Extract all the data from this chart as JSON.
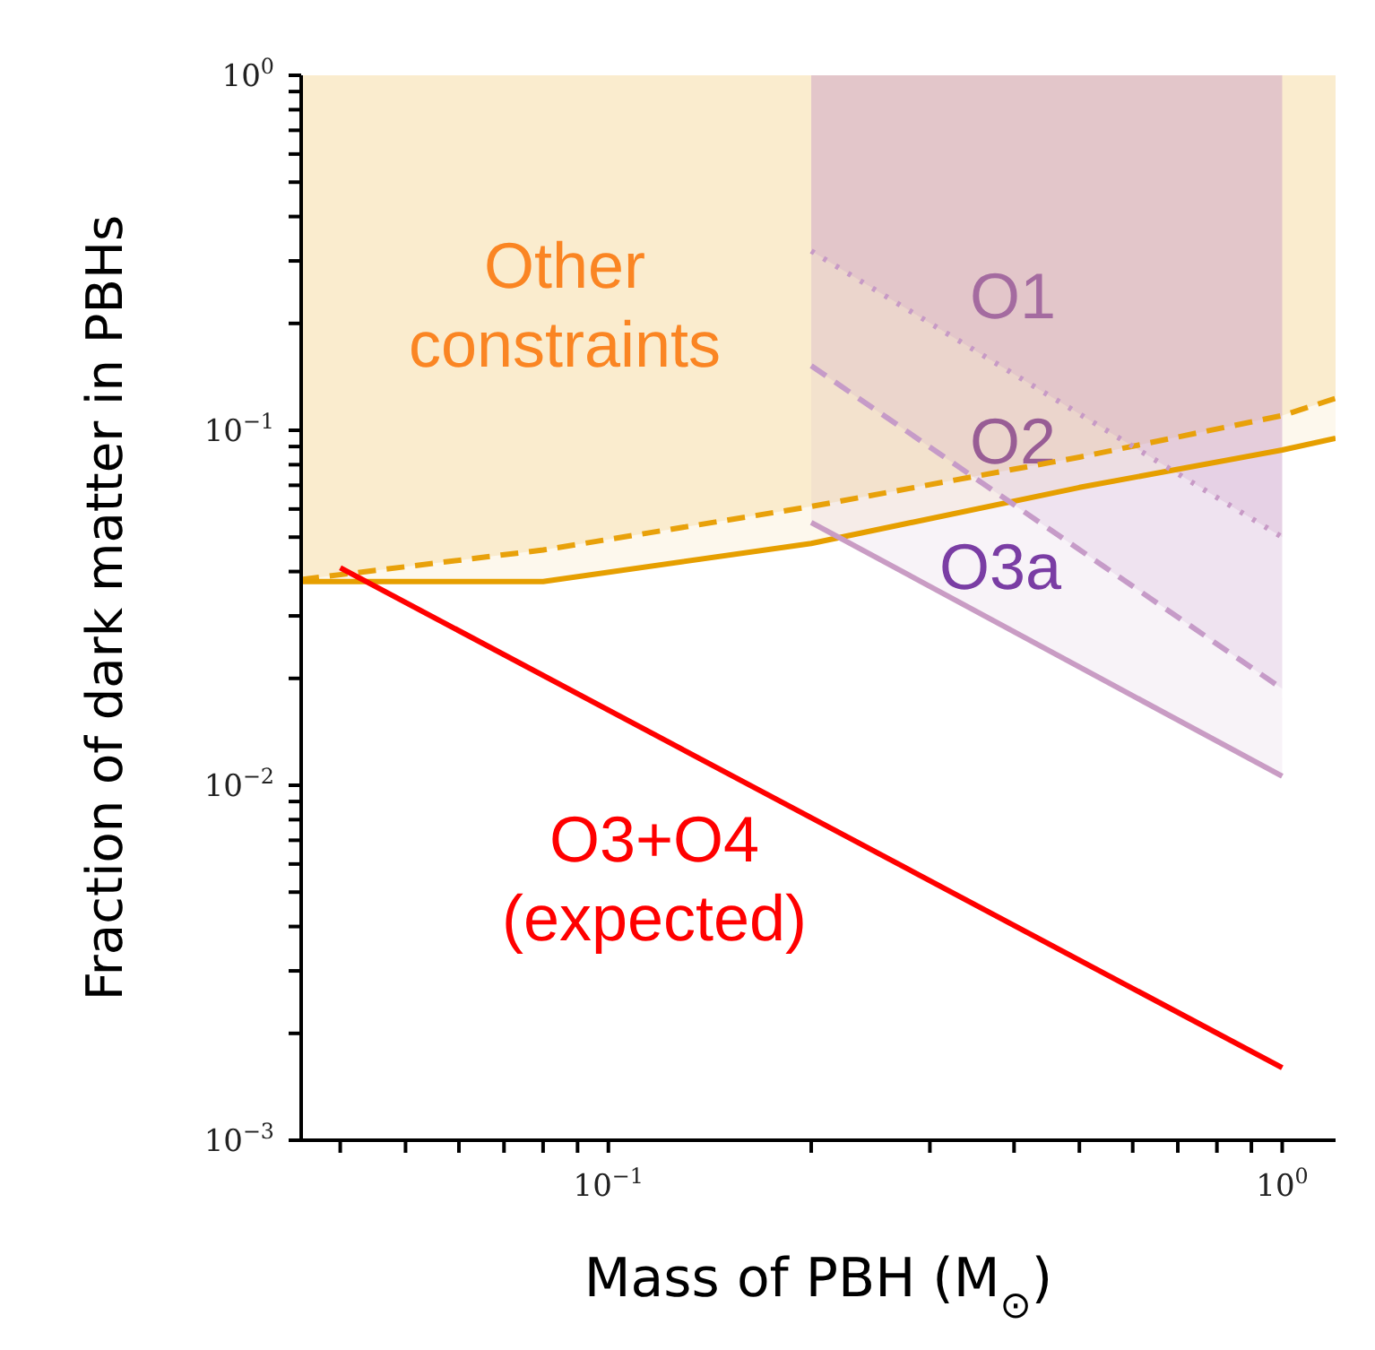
{
  "chart_data": {
    "type": "line",
    "log": "xy",
    "xlabel": "Mass of PBH (M$_{⊙}$)",
    "ylabel": "Fraction of dark matter in PBHs",
    "xlim": [
      0.035,
      1.2
    ],
    "xticks": [
      {
        "value": 0.04,
        "label": null
      },
      {
        "value": 0.05,
        "label": null
      },
      {
        "value": 0.06,
        "label": null
      },
      {
        "value": 0.07,
        "label": null
      },
      {
        "value": 0.08,
        "label": null
      },
      {
        "value": 0.09,
        "label": null
      },
      {
        "value": 0.1,
        "label": "10$^{−1}$"
      },
      {
        "value": 0.2,
        "label": null
      },
      {
        "value": 0.3,
        "label": null
      },
      {
        "value": 0.4,
        "label": null
      },
      {
        "value": 0.5,
        "label": null
      },
      {
        "value": 0.6,
        "label": null
      },
      {
        "value": 0.7,
        "label": null
      },
      {
        "value": 0.8,
        "label": null
      },
      {
        "value": 0.9,
        "label": null
      },
      {
        "value": 1,
        "label": "10$^{0}$"
      }
    ],
    "ylim": [
      0.001,
      1
    ],
    "yticks": [
      {
        "value": 0.001,
        "label": "10$^{−3}$"
      },
      {
        "value": 0.002,
        "label": null
      },
      {
        "value": 0.003,
        "label": null
      },
      {
        "value": 0.004,
        "label": null
      },
      {
        "value": 0.005,
        "label": null
      },
      {
        "value": 0.006,
        "label": null
      },
      {
        "value": 0.007,
        "label": null
      },
      {
        "value": 0.008,
        "label": null
      },
      {
        "value": 0.009,
        "label": null
      },
      {
        "value": 0.01,
        "label": "10$^{−2}$"
      },
      {
        "value": 0.02,
        "label": null
      },
      {
        "value": 0.03,
        "label": null
      },
      {
        "value": 0.04,
        "label": null
      },
      {
        "value": 0.05,
        "label": null
      },
      {
        "value": 0.06,
        "label": null
      },
      {
        "value": 0.07,
        "label": null
      },
      {
        "value": 0.08,
        "label": null
      },
      {
        "value": 0.09,
        "label": null
      },
      {
        "value": 0.1,
        "label": "10$^{−1}$"
      },
      {
        "value": 0.2,
        "label": null
      },
      {
        "value": 0.3,
        "label": null
      },
      {
        "value": 0.4,
        "label": null
      },
      {
        "value": 0.5,
        "label": null
      },
      {
        "value": 0.6,
        "label": null
      },
      {
        "value": 0.7,
        "label": null
      },
      {
        "value": 0.8,
        "label": null
      },
      {
        "value": 0.9,
        "label": null
      },
      {
        "value": 1,
        "label": "10$^{0}$"
      }
    ],
    "series": [
      {
        "color": "#e8a10a",
        "line_style": "dashed",
        "x": [
          0.035,
          0.08,
          0.2,
          0.5,
          1.0,
          1.2
        ],
        "values": [
          0.038,
          0.046,
          0.061,
          0.084,
          0.11,
          0.123
        ],
        "lower": [
          0.038,
          0.046,
          0.061,
          0.084,
          0.11,
          0.123
        ],
        "upper": [
          1,
          1,
          1,
          1,
          1,
          1
        ]
      },
      {
        "color": "#e69f00",
        "line_style": "solid",
        "x": [
          0.035,
          0.08,
          0.2,
          0.5,
          1.0,
          1.2
        ],
        "values": [
          0.0375,
          0.0375,
          0.048,
          0.069,
          0.088,
          0.095
        ],
        "lower": [
          0.0375,
          0.0375,
          0.048,
          0.069,
          0.088,
          0.095
        ],
        "upper": [
          0.038,
          0.046,
          0.061,
          0.084,
          0.11,
          0.123
        ]
      },
      {
        "color": "#c79ac6",
        "line_style": "dotted",
        "x": [
          0.2,
          1.0
        ],
        "values": [
          0.32,
          0.05
        ],
        "lower": [
          0.32,
          0.05
        ],
        "upper": [
          1,
          1
        ]
      },
      {
        "color": "#c69bc8",
        "line_style": "dashed",
        "x": [
          0.2,
          1.0
        ],
        "values": [
          0.152,
          0.0187
        ],
        "lower": [
          0.152,
          0.0187
        ],
        "upper": [
          0.32,
          0.05
        ]
      },
      {
        "color": "#c99cc4",
        "line_style": "solid",
        "x": [
          0.2,
          1.0
        ],
        "values": [
          0.055,
          0.0106
        ],
        "lower": [
          0.055,
          0.0106
        ],
        "upper": [
          0.152,
          0.0187
        ]
      },
      {
        "color": "#ff0000",
        "line_style": "solid",
        "x": [
          0.04,
          1.0
        ],
        "values": [
          0.041,
          0.0016
        ]
      }
    ],
    "annotations": [
      "Other\nconstraints",
      "O1",
      "O2",
      "O3a",
      "O3+O4\n(expected)"
    ]
  }
}
